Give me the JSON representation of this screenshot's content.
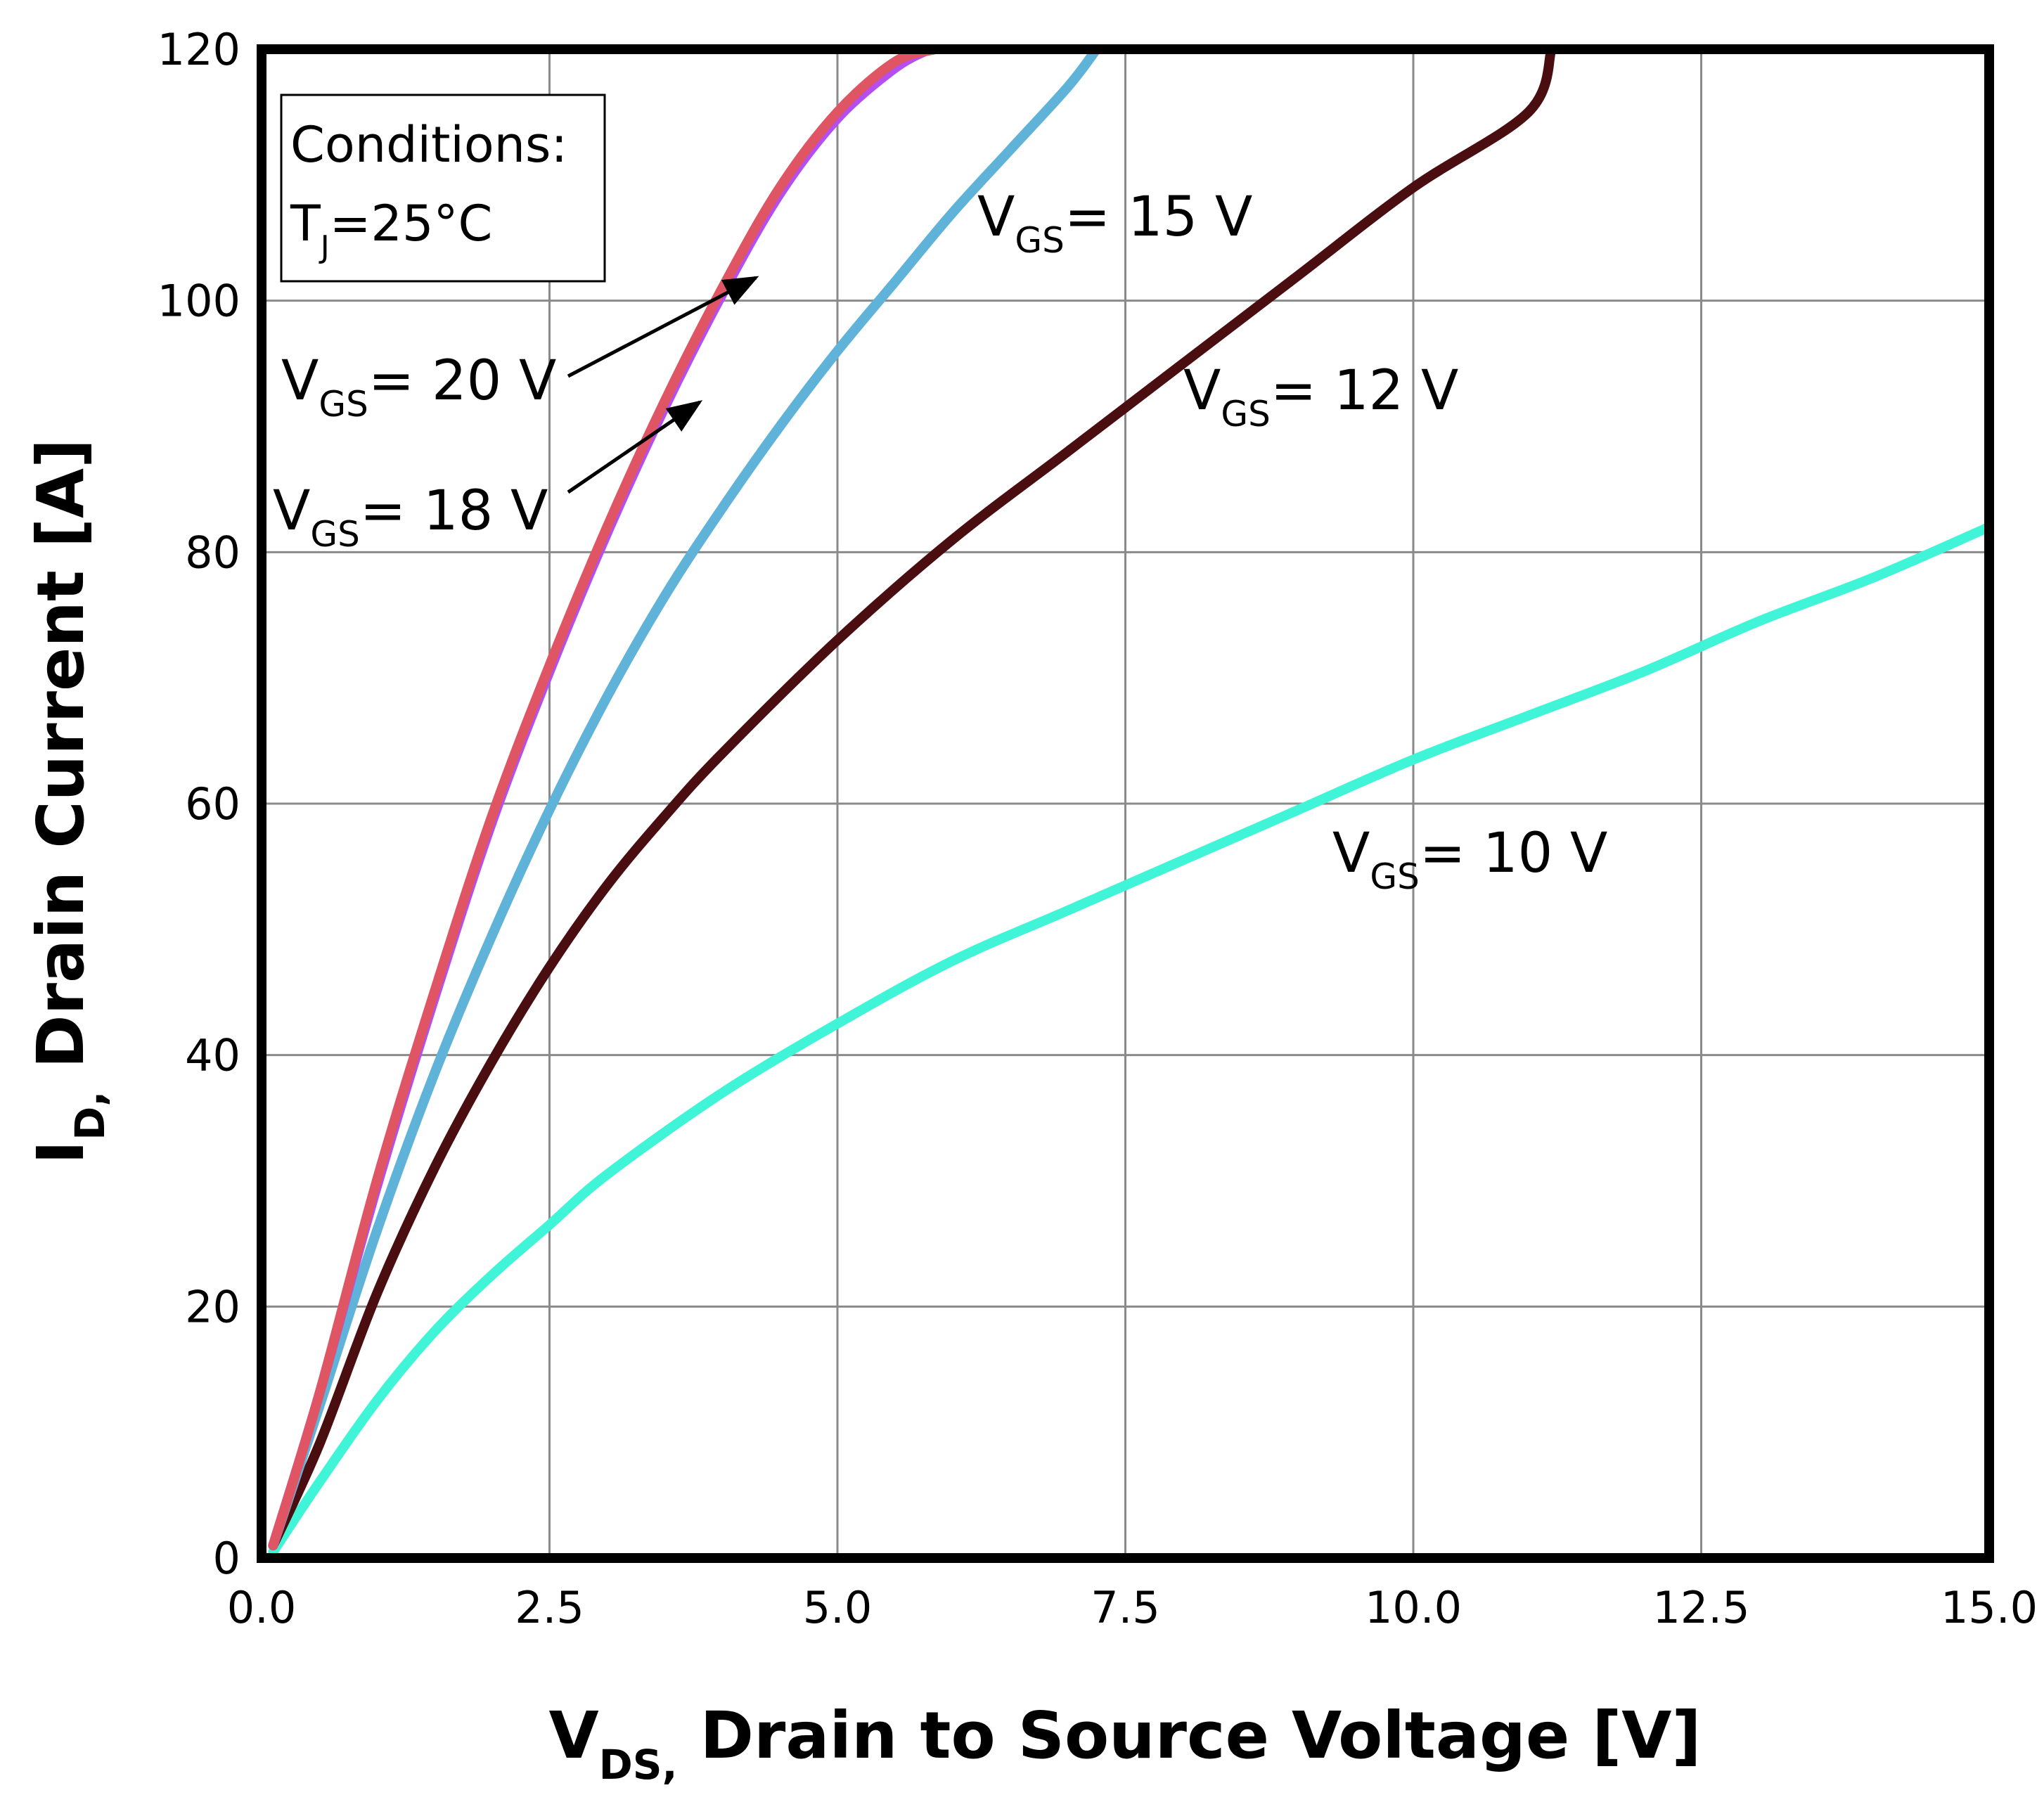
{
  "chart_data": {
    "type": "line",
    "title": "",
    "xlabel": {
      "main": "V",
      "sub": "DS,",
      "rest": " Drain to Source Voltage [V]"
    },
    "ylabel": {
      "main": "I",
      "sub": "D,",
      "rest": " Drain Current [A]"
    },
    "xlim": [
      0,
      15
    ],
    "ylim": [
      0,
      120
    ],
    "x_ticks": [
      0,
      2.5,
      5,
      7.5,
      10,
      12.5,
      15
    ],
    "x_tick_labels": [
      "0.0",
      "2.5",
      "5.0",
      "7.5",
      "10.0",
      "12.5",
      "15.0"
    ],
    "y_ticks": [
      0,
      20,
      40,
      60,
      80,
      100,
      120
    ],
    "y_tick_labels": [
      "0",
      "20",
      "40",
      "60",
      "80",
      "100",
      "120"
    ],
    "grid": true,
    "conditions": {
      "title": "Conditions:",
      "main": "T",
      "sub": "J",
      "rest": "=25°C"
    },
    "series": [
      {
        "name": "VGS = 20 V",
        "label": {
          "main": "V",
          "sub": "GS",
          "rest": "= 20 V"
        },
        "color": "#e05563",
        "x": [
          0.1,
          0.5,
          1.0,
          1.5,
          2.0,
          2.5,
          3.0,
          3.5,
          4.0,
          4.5,
          5.0,
          5.5,
          5.85
        ],
        "y": [
          1,
          13,
          30,
          45,
          59,
          71,
          82,
          92,
          101,
          109,
          115,
          119,
          120
        ]
      },
      {
        "name": "VGS = 18 V",
        "label": {
          "main": "V",
          "sub": "GS",
          "rest": "= 18 V"
        },
        "color": "#b44ef0",
        "x": [
          0.1,
          0.5,
          1.0,
          1.5,
          2.0,
          2.5,
          3.0,
          3.5,
          4.0,
          4.5,
          5.0,
          5.5,
          5.8
        ],
        "y": [
          1,
          13,
          29.5,
          44.5,
          58.5,
          70.5,
          81.5,
          91.5,
          100.5,
          108.5,
          114.5,
          118.5,
          120
        ]
      },
      {
        "name": "VGS = 15 V",
        "label": {
          "main": "V",
          "sub": "GS",
          "rest": "= 15 V"
        },
        "color": "#60b3d8",
        "x": [
          0.1,
          0.5,
          1.0,
          1.5,
          2.0,
          2.5,
          3.0,
          3.5,
          4.0,
          4.5,
          5.0,
          5.5,
          6.0,
          6.5,
          7.0,
          7.25
        ],
        "y": [
          1,
          12,
          26,
          38.5,
          49.5,
          59.5,
          68.5,
          76.5,
          83.5,
          90,
          96,
          101.5,
          107,
          112,
          117,
          120
        ]
      },
      {
        "name": "VGS = 12 V",
        "label": {
          "main": "V",
          "sub": "GS",
          "rest": "= 12 V"
        },
        "color": "#4a0d10",
        "x": [
          0.1,
          0.5,
          1.0,
          1.5,
          2.0,
          2.5,
          3.0,
          3.5,
          4.0,
          5.0,
          6.0,
          7.0,
          8.0,
          9.0,
          10.0,
          11.0,
          11.2
        ],
        "y": [
          1,
          9,
          21,
          31,
          39.5,
          47,
          53.5,
          59,
          64,
          73,
          81,
          88,
          95,
          102,
          109,
          115,
          120
        ]
      },
      {
        "name": "VGS = 10 V",
        "label": {
          "main": "V",
          "sub": "GS",
          "rest": "= 10 V"
        },
        "color": "#40f5d7",
        "x": [
          0.1,
          0.5,
          1.0,
          1.5,
          2.0,
          2.5,
          3.0,
          4.0,
          5.0,
          6.0,
          7.0,
          8.0,
          9.0,
          10.0,
          11.0,
          12.0,
          13.0,
          14.0,
          15.0
        ],
        "y": [
          0.5,
          6,
          12.5,
          18,
          22.5,
          26.5,
          30.5,
          37,
          42.5,
          47.5,
          51.5,
          55.5,
          59.5,
          63.5,
          67,
          70.5,
          74.5,
          78,
          82
        ]
      }
    ]
  }
}
